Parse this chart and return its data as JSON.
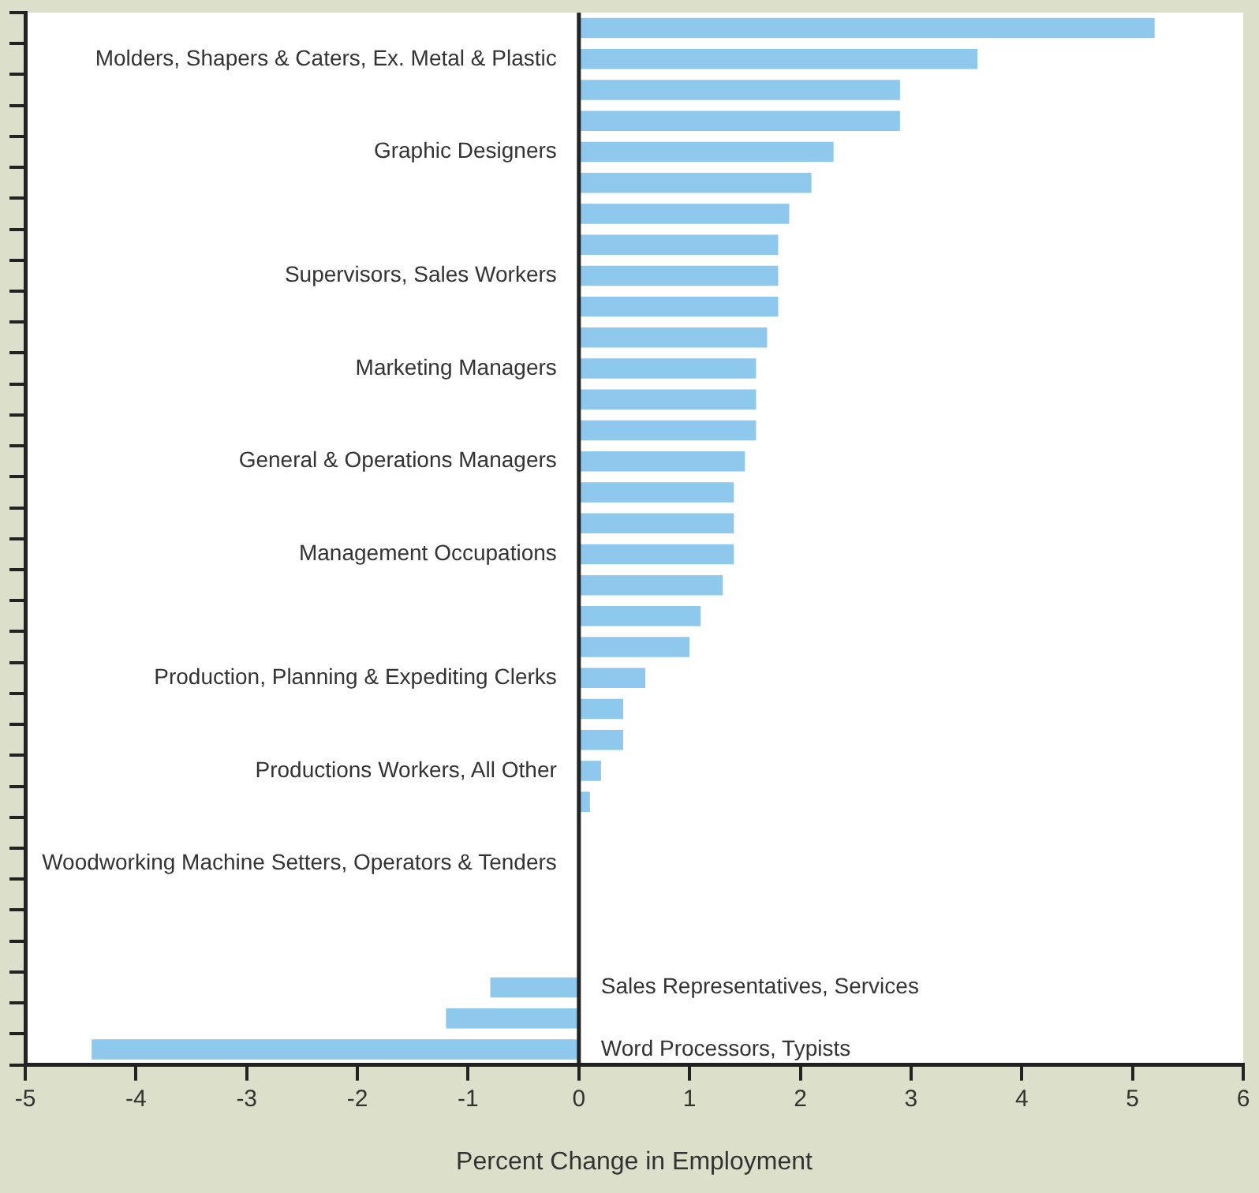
{
  "chart_data": {
    "type": "bar",
    "orientation": "horizontal",
    "xlabel": "Percent Change in Employment",
    "categories": [
      null,
      "Molders, Shapers & Caters, Ex. Metal & Plastic",
      null,
      null,
      "Graphic Designers",
      null,
      null,
      null,
      "Supervisors, Sales Workers",
      null,
      null,
      "Marketing Managers",
      null,
      null,
      "General & Operations Managers",
      null,
      null,
      "Management Occupations",
      null,
      null,
      null,
      "Production, Planning & Expediting Clerks",
      null,
      null,
      "Productions Workers, All Other",
      null,
      null,
      "Woodworking Machine Setters, Operators & Tenders",
      null,
      null,
      null,
      "Sales Representatives, Services",
      null,
      "Word Processors, Typists"
    ],
    "values": [
      5.2,
      3.6,
      2.9,
      2.9,
      2.3,
      2.1,
      1.9,
      1.8,
      1.8,
      1.8,
      1.7,
      1.6,
      1.6,
      1.6,
      1.5,
      1.4,
      1.4,
      1.4,
      1.3,
      1.1,
      1.0,
      0.6,
      0.4,
      0.4,
      0.2,
      0.1,
      0,
      0,
      0,
      0,
      0,
      -0.8,
      -1.2,
      -4.4
    ],
    "color": "#8ec8ec",
    "xlim": [
      -5,
      6
    ],
    "xticks": [
      -5,
      -4,
      -3,
      -2,
      -1,
      0,
      1,
      2,
      3,
      4,
      5,
      6
    ],
    "grid": false,
    "legend": false,
    "ref_lines": [
      {
        "axis": "x",
        "value": 0
      }
    ]
  }
}
